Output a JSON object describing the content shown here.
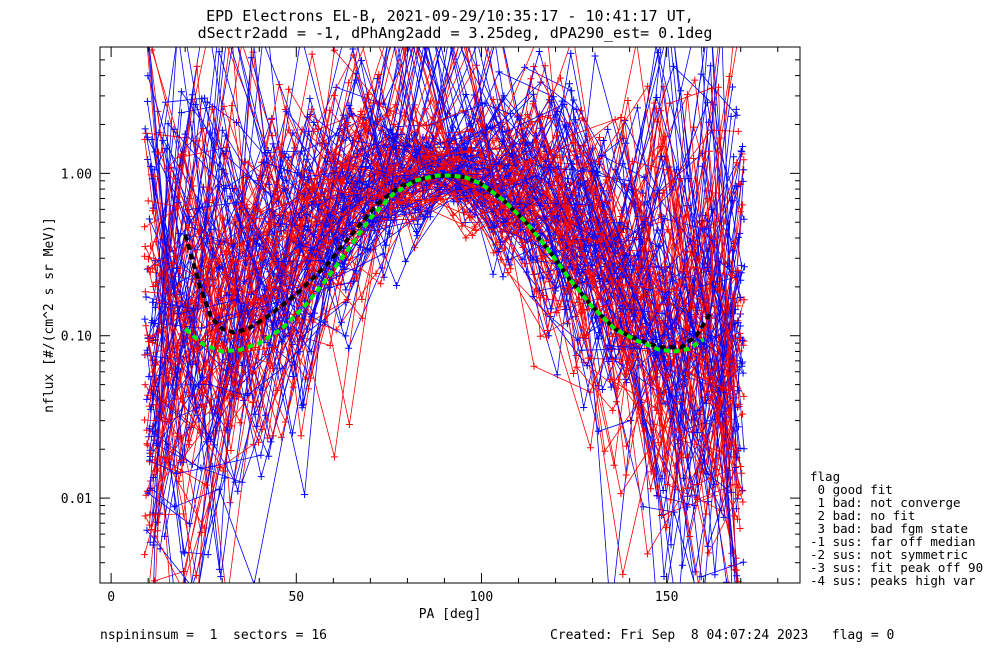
{
  "chart_data": {
    "type": "line",
    "title": "EPD Electrons EL-B, 2021-09-29/10:35:17 - 10:41:17 UT,",
    "subtitle": "dSectr2add = -1, dPhAng2add = 3.25deg, dPA290_est=   0.1deg",
    "xlabel": "PA [deg]",
    "ylabel": "nflux [#/(cm^2 s sr MeV)]",
    "xlim": [
      -3,
      186
    ],
    "ylim": [
      0.003,
      6
    ],
    "yscale": "log",
    "xticks": [
      0,
      50,
      100,
      150
    ],
    "yticks": [
      0.01,
      0.1,
      1.0
    ],
    "ytick_labels": [
      "0.01",
      "0.10",
      "1.00"
    ],
    "colors": {
      "red": "#ff0000",
      "blue": "#0000ff",
      "green": "#00ee00",
      "black": "#000000"
    },
    "fit_curves": [
      {
        "color": "#000000",
        "style": "dashed",
        "x": [
          20,
          24,
          27,
          30,
          33,
          37,
          42,
          50,
          58,
          66,
          72,
          78,
          84,
          90,
          95,
          100,
          106,
          112,
          118,
          124,
          130,
          136,
          142,
          148,
          154,
          158,
          162
        ],
        "y": [
          0.42,
          0.2,
          0.13,
          0.11,
          0.105,
          0.11,
          0.13,
          0.18,
          0.27,
          0.45,
          0.65,
          0.83,
          0.93,
          0.97,
          0.95,
          0.86,
          0.68,
          0.5,
          0.34,
          0.22,
          0.15,
          0.11,
          0.095,
          0.085,
          0.085,
          0.1,
          0.14
        ]
      },
      {
        "color": "#00ee00",
        "style": "dashed",
        "x": [
          20,
          25,
          30,
          35,
          40,
          46,
          52,
          58,
          64,
          70,
          76,
          82,
          88,
          92,
          96,
          100,
          106,
          112,
          118,
          124,
          130,
          136,
          142,
          148,
          152,
          156,
          160
        ],
        "y": [
          0.11,
          0.088,
          0.08,
          0.082,
          0.09,
          0.11,
          0.15,
          0.22,
          0.34,
          0.53,
          0.74,
          0.9,
          0.97,
          0.97,
          0.94,
          0.86,
          0.68,
          0.5,
          0.34,
          0.22,
          0.15,
          0.11,
          0.093,
          0.082,
          0.08,
          0.083,
          0.095
        ]
      }
    ]
  },
  "legend": {
    "title": "flag",
    "items": [
      " 0 good fit",
      " 1 bad: not converge",
      " 2 bad: no fit",
      " 3 bad: bad fgm state",
      "-1 sus: far off median",
      "-2 sus: not symmetric",
      "-3 sus: fit peak off 90",
      "-4 sus: peaks high var"
    ]
  },
  "footer": {
    "left": "nspininsum =  1  sectors = 16",
    "right": "Created: Fri Sep  8 04:07:24 2023   flag = 0"
  }
}
